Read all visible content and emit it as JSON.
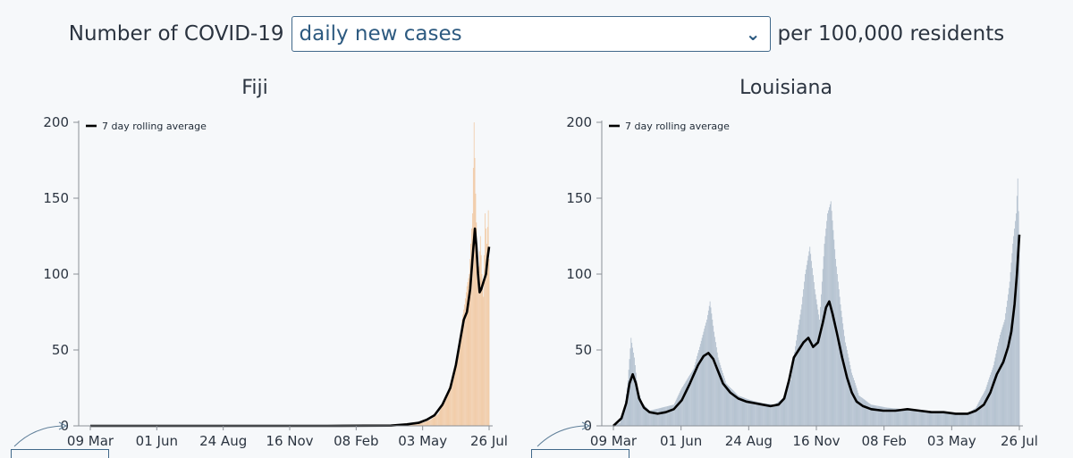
{
  "header": {
    "prefix": "Number of COVID-19",
    "metric_selected": "daily new cases",
    "suffix": "per 100,000 residents",
    "chevron_icon": "chevron-down-icon"
  },
  "chart_data": [
    {
      "type": "bar",
      "title": "Fiji",
      "legend": "7 day rolling average",
      "bar_color": "#f0c49a",
      "line_color": "#000000",
      "ylim": [
        0,
        200
      ],
      "yticks": [
        "0",
        "50",
        "100",
        "150",
        "200"
      ],
      "xticks": [
        "09 Mar",
        "01 Jun",
        "24 Aug",
        "16 Nov",
        "08 Feb",
        "03 May",
        "26 Jul"
      ],
      "x_range_days": [
        0,
        504
      ],
      "bar_series": {
        "name": "daily new cases",
        "points": [
          [
            0,
            0
          ],
          [
            60,
            0
          ],
          [
            120,
            0
          ],
          [
            200,
            0
          ],
          [
            300,
            0
          ],
          [
            380,
            0.2
          ],
          [
            405,
            0.8
          ],
          [
            420,
            2
          ],
          [
            430,
            4
          ],
          [
            440,
            8
          ],
          [
            445,
            14
          ],
          [
            450,
            20
          ],
          [
            455,
            28
          ],
          [
            460,
            38
          ],
          [
            465,
            50
          ],
          [
            470,
            70
          ],
          [
            473,
            80
          ],
          [
            476,
            92
          ],
          [
            479,
            100
          ],
          [
            481,
            120
          ],
          [
            483,
            140
          ],
          [
            485,
            200
          ],
          [
            487,
            153
          ],
          [
            489,
            115
          ],
          [
            491,
            105
          ],
          [
            493,
            125
          ],
          [
            495,
            100
          ],
          [
            497,
            85
          ],
          [
            499,
            140
          ],
          [
            501,
            120
          ],
          [
            503,
            142
          ],
          [
            504,
            110
          ]
        ]
      },
      "avg_series": {
        "name": "7 day rolling average",
        "points": [
          [
            0,
            0
          ],
          [
            100,
            0
          ],
          [
            200,
            0
          ],
          [
            300,
            0
          ],
          [
            380,
            0.2
          ],
          [
            400,
            1
          ],
          [
            415,
            2
          ],
          [
            425,
            4
          ],
          [
            435,
            7
          ],
          [
            445,
            14
          ],
          [
            455,
            25
          ],
          [
            462,
            40
          ],
          [
            468,
            58
          ],
          [
            472,
            70
          ],
          [
            476,
            75
          ],
          [
            480,
            90
          ],
          [
            483,
            110
          ],
          [
            486,
            130
          ],
          [
            488,
            118
          ],
          [
            490,
            100
          ],
          [
            492,
            88
          ],
          [
            494,
            90
          ],
          [
            497,
            95
          ],
          [
            500,
            100
          ],
          [
            502,
            110
          ],
          [
            504,
            118
          ]
        ]
      }
    },
    {
      "type": "bar",
      "title": "Louisiana",
      "legend": "7 day rolling average",
      "bar_color": "#a9b8c8",
      "line_color": "#000000",
      "ylim": [
        0,
        200
      ],
      "yticks": [
        "0",
        "50",
        "100",
        "150",
        "200"
      ],
      "xticks": [
        "09 Mar",
        "01 Jun",
        "24 Aug",
        "16 Nov",
        "08 Feb",
        "03 May",
        "26 Jul"
      ],
      "x_range_days": [
        0,
        504
      ],
      "bar_series": {
        "name": "daily new cases",
        "points": [
          [
            0,
            0
          ],
          [
            8,
            2
          ],
          [
            14,
            12
          ],
          [
            18,
            30
          ],
          [
            22,
            58
          ],
          [
            26,
            45
          ],
          [
            30,
            25
          ],
          [
            36,
            15
          ],
          [
            45,
            10
          ],
          [
            60,
            12
          ],
          [
            75,
            14
          ],
          [
            85,
            25
          ],
          [
            100,
            38
          ],
          [
            110,
            58
          ],
          [
            116,
            70
          ],
          [
            120,
            82
          ],
          [
            125,
            62
          ],
          [
            130,
            45
          ],
          [
            140,
            28
          ],
          [
            155,
            20
          ],
          [
            170,
            17
          ],
          [
            185,
            15
          ],
          [
            200,
            14
          ],
          [
            210,
            18
          ],
          [
            220,
            30
          ],
          [
            228,
            60
          ],
          [
            234,
            80
          ],
          [
            238,
            100
          ],
          [
            244,
            118
          ],
          [
            250,
            90
          ],
          [
            256,
            70
          ],
          [
            262,
            120
          ],
          [
            266,
            140
          ],
          [
            270,
            148
          ],
          [
            276,
            110
          ],
          [
            282,
            80
          ],
          [
            288,
            55
          ],
          [
            296,
            35
          ],
          [
            305,
            20
          ],
          [
            320,
            14
          ],
          [
            340,
            12
          ],
          [
            360,
            11
          ],
          [
            380,
            10
          ],
          [
            400,
            9
          ],
          [
            420,
            8
          ],
          [
            440,
            8
          ],
          [
            450,
            12
          ],
          [
            462,
            24
          ],
          [
            472,
            40
          ],
          [
            480,
            60
          ],
          [
            486,
            70
          ],
          [
            492,
            95
          ],
          [
            496,
            120
          ],
          [
            500,
            140
          ],
          [
            502,
            163
          ],
          [
            504,
            120
          ]
        ]
      },
      "avg_series": {
        "name": "7 day rolling average",
        "points": [
          [
            0,
            0
          ],
          [
            10,
            5
          ],
          [
            16,
            15
          ],
          [
            20,
            28
          ],
          [
            24,
            34
          ],
          [
            28,
            28
          ],
          [
            32,
            18
          ],
          [
            38,
            12
          ],
          [
            45,
            9
          ],
          [
            55,
            8
          ],
          [
            65,
            9
          ],
          [
            75,
            11
          ],
          [
            85,
            17
          ],
          [
            95,
            28
          ],
          [
            105,
            40
          ],
          [
            112,
            46
          ],
          [
            118,
            48
          ],
          [
            124,
            44
          ],
          [
            130,
            36
          ],
          [
            136,
            28
          ],
          [
            145,
            22
          ],
          [
            155,
            18
          ],
          [
            165,
            16
          ],
          [
            175,
            15
          ],
          [
            185,
            14
          ],
          [
            195,
            13
          ],
          [
            205,
            14
          ],
          [
            212,
            18
          ],
          [
            218,
            30
          ],
          [
            224,
            45
          ],
          [
            230,
            50
          ],
          [
            236,
            55
          ],
          [
            242,
            58
          ],
          [
            248,
            52
          ],
          [
            254,
            55
          ],
          [
            260,
            68
          ],
          [
            264,
            78
          ],
          [
            268,
            82
          ],
          [
            272,
            74
          ],
          [
            278,
            60
          ],
          [
            284,
            45
          ],
          [
            290,
            32
          ],
          [
            296,
            22
          ],
          [
            302,
            16
          ],
          [
            310,
            13
          ],
          [
            320,
            11
          ],
          [
            335,
            10
          ],
          [
            350,
            10
          ],
          [
            365,
            11
          ],
          [
            380,
            10
          ],
          [
            395,
            9
          ],
          [
            410,
            9
          ],
          [
            425,
            8
          ],
          [
            440,
            8
          ],
          [
            450,
            10
          ],
          [
            460,
            14
          ],
          [
            468,
            22
          ],
          [
            476,
            34
          ],
          [
            484,
            42
          ],
          [
            490,
            52
          ],
          [
            494,
            62
          ],
          [
            498,
            80
          ],
          [
            501,
            100
          ],
          [
            504,
            126
          ]
        ]
      }
    }
  ]
}
